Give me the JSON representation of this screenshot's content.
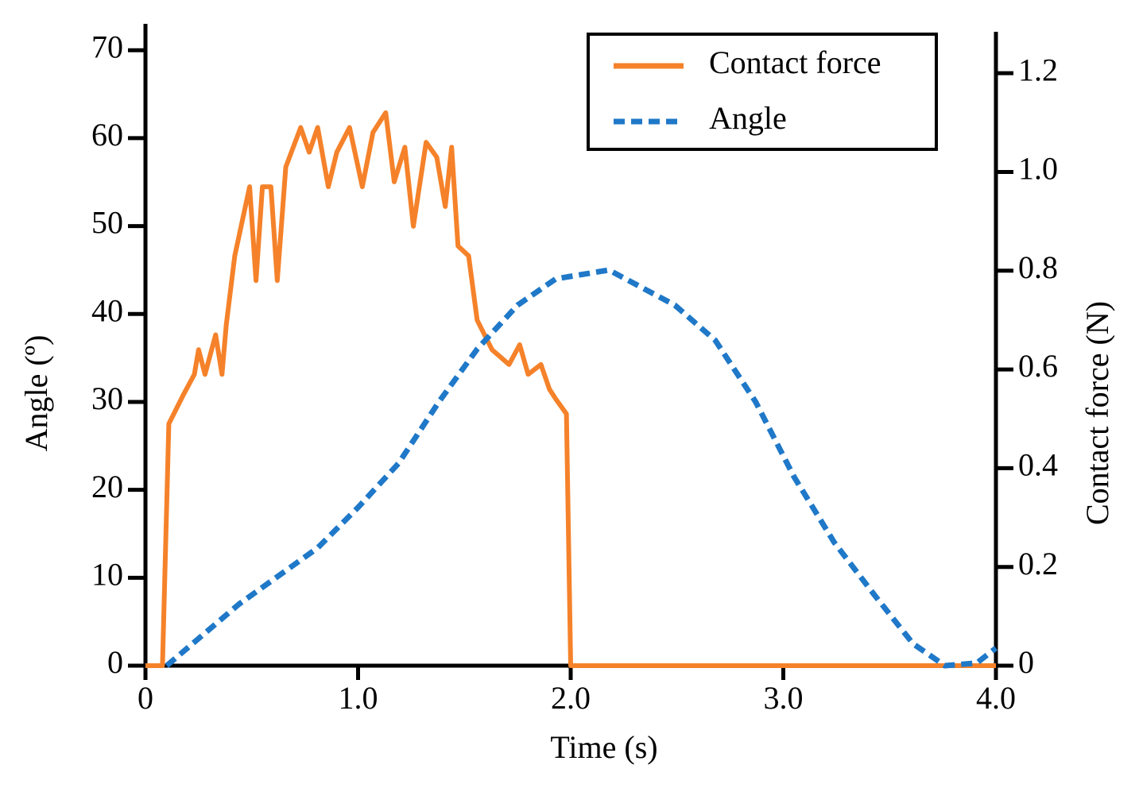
{
  "chart_data": {
    "type": "line",
    "xlabel": "Time (s)",
    "ylabel": "Angle (º)",
    "y2label": "Contact force (N)",
    "xlim": [
      0,
      4.0
    ],
    "xticks": [
      0,
      {
        "value": 1,
        "label": "1.0"
      },
      {
        "value": 2,
        "label": "2.0"
      },
      {
        "value": 3,
        "label": "3.0"
      },
      {
        "value": 4,
        "label": "4.0"
      }
    ],
    "ylim": [
      0,
      73
    ],
    "yticks": [
      0,
      10,
      20,
      30,
      40,
      50,
      60,
      70
    ],
    "y2lim": [
      0,
      1.3
    ],
    "y2ticks": [
      0,
      0.2,
      0.4,
      0.6,
      0.8,
      {
        "value": 1,
        "label": "1.0"
      },
      1.2
    ],
    "legend": "upper right",
    "series": [
      {
        "name": "Contact force",
        "color": "#f5822a",
        "axis": "y2",
        "dash": "solid",
        "x": [
          0,
          0.08,
          0.11,
          0.18,
          0.23,
          0.25,
          0.28,
          0.33,
          0.36,
          0.38,
          0.42,
          0.46,
          0.49,
          0.52,
          0.55,
          0.59,
          0.62,
          0.66,
          0.73,
          0.77,
          0.81,
          0.86,
          0.9,
          0.96,
          1.02,
          1.07,
          1.13,
          1.17,
          1.22,
          1.26,
          1.32,
          1.37,
          1.41,
          1.44,
          1.47,
          1.52,
          1.56,
          1.63,
          1.71,
          1.76,
          1.8,
          1.86,
          1.9,
          1.93,
          1.98,
          2.0,
          4.0
        ],
        "values": [
          0,
          0,
          0.49,
          0.55,
          0.59,
          0.64,
          0.59,
          0.67,
          0.59,
          0.69,
          0.83,
          0.91,
          0.97,
          0.78,
          0.97,
          0.97,
          0.78,
          1.01,
          1.09,
          1.04,
          1.09,
          0.97,
          1.04,
          1.09,
          0.97,
          1.08,
          1.12,
          0.98,
          1.05,
          0.89,
          1.06,
          1.03,
          0.93,
          1.05,
          0.85,
          0.83,
          0.7,
          0.64,
          0.61,
          0.65,
          0.59,
          0.61,
          0.56,
          0.54,
          0.51,
          0,
          0
        ]
      },
      {
        "name": "Angle",
        "color": "#1f78c8",
        "axis": "y",
        "dash": "dashed",
        "x": [
          0.1,
          0.44,
          0.81,
          1.0,
          1.19,
          1.38,
          1.56,
          1.75,
          1.93,
          2.18,
          2.49,
          2.68,
          2.87,
          3.05,
          3.24,
          3.43,
          3.61,
          3.76,
          3.91,
          4.0
        ],
        "values": [
          0,
          7,
          13.4,
          18,
          23,
          30,
          36,
          41,
          44,
          45,
          41,
          37,
          30,
          21.5,
          14,
          8,
          2.5,
          0,
          0.3,
          2
        ]
      }
    ]
  }
}
